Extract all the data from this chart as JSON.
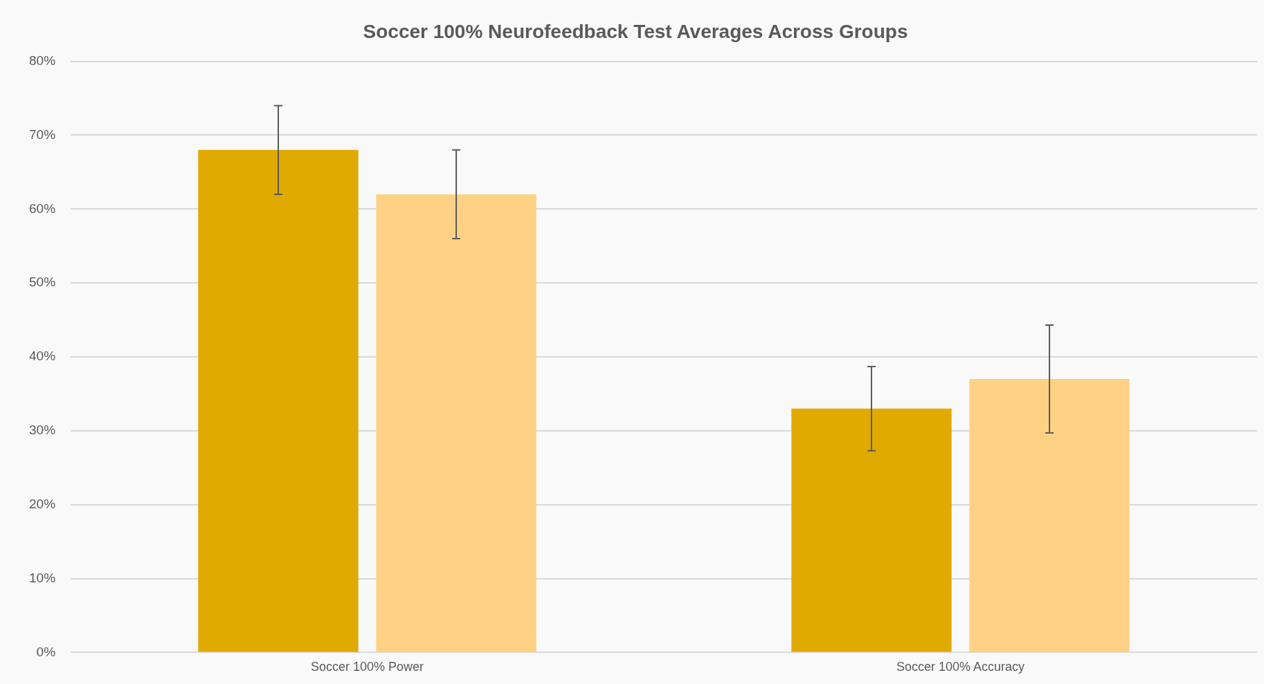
{
  "chart_data": {
    "type": "bar",
    "title": "Soccer 100% Neurofeedback Test Averages Across Groups",
    "categories": [
      "Soccer 100% Power",
      "Soccer 100% Accuracy"
    ],
    "series": [
      {
        "color": "#e1aa00",
        "values": [
          68,
          33
        ],
        "errors": [
          6,
          5.7
        ]
      },
      {
        "color": "#fed184",
        "values": [
          62,
          37
        ],
        "errors": [
          6,
          7.3
        ]
      }
    ],
    "ylim": [
      0,
      80
    ],
    "yticks": [
      {
        "value": 0,
        "label": "0%"
      },
      {
        "value": 10,
        "label": "10%"
      },
      {
        "value": 20,
        "label": "20%"
      },
      {
        "value": 30,
        "label": "30%"
      },
      {
        "value": 40,
        "label": "40%"
      },
      {
        "value": 50,
        "label": "50%"
      },
      {
        "value": 60,
        "label": "60%"
      },
      {
        "value": 70,
        "label": "70%"
      },
      {
        "value": 80,
        "label": "80%"
      }
    ],
    "grid": "y",
    "legend": false
  }
}
